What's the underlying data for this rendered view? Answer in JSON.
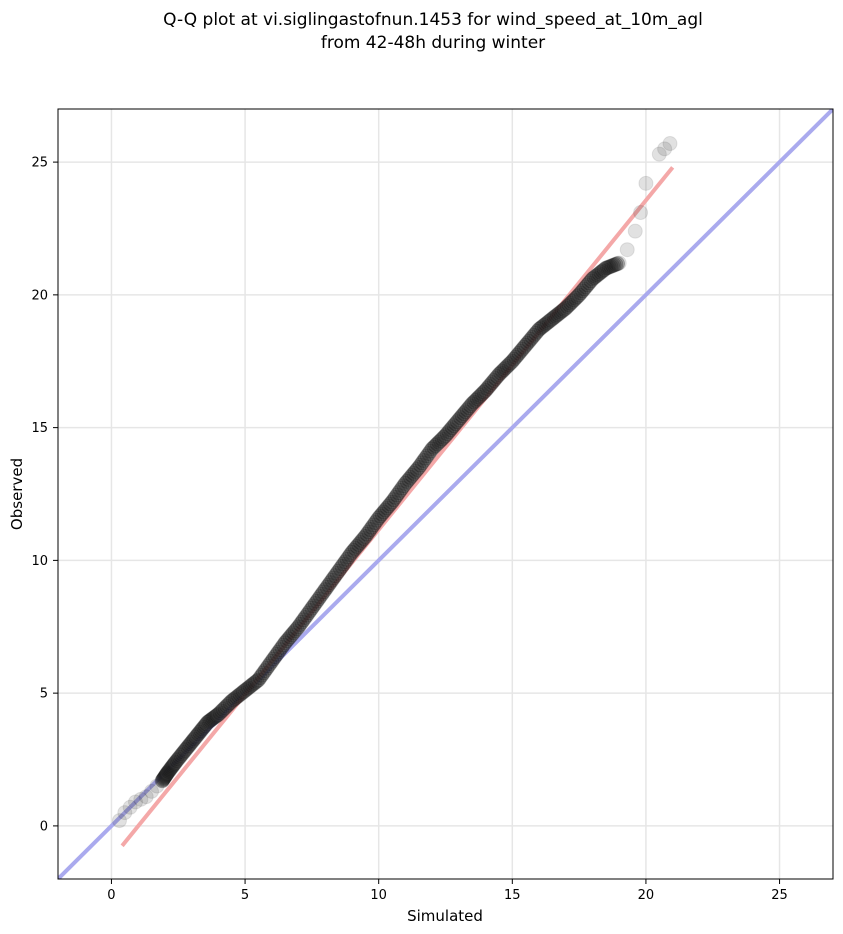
{
  "chart_data": {
    "type": "scatter",
    "title_lines": [
      "Q-Q plot at vi.siglingastofnun.1453 for wind_speed_at_10m_agl",
      "from 42-48h during winter"
    ],
    "xlabel": "Simulated",
    "ylabel": "Observed",
    "xlim": [
      -2,
      27
    ],
    "ylim": [
      -2,
      27
    ],
    "xticks": [
      0,
      5,
      10,
      15,
      20,
      25
    ],
    "yticks": [
      0,
      5,
      10,
      15,
      20,
      25
    ],
    "xtick_labels": [
      "0",
      "5",
      "10",
      "15",
      "20",
      "25"
    ],
    "ytick_labels": [
      "0",
      "5",
      "10",
      "15",
      "20",
      "25"
    ],
    "grid": true,
    "reference_line": {
      "x": [
        -2,
        27
      ],
      "y": [
        -2,
        27
      ],
      "color": "#aaaaee"
    },
    "fit_line": {
      "x": [
        0.4,
        21.0
      ],
      "y": [
        -0.75,
        24.8
      ],
      "color": "#f4a8a8"
    },
    "quantile_points": {
      "x": [
        0.3,
        0.5,
        0.7,
        0.9,
        1.1,
        1.3,
        1.5,
        1.7,
        1.9,
        2.1,
        2.4,
        2.8,
        3.2,
        3.6,
        4.0,
        4.5,
        5.0,
        5.5,
        6.0,
        6.5,
        7.0,
        7.5,
        8.0,
        8.5,
        9.0,
        9.5,
        10.0,
        10.5,
        11.0,
        11.5,
        12.0,
        12.5,
        13.0,
        13.5,
        14.0,
        14.5,
        15.0,
        15.5,
        16.0,
        16.5,
        17.0,
        17.5,
        18.0,
        18.5,
        19.0,
        19.3,
        19.6,
        19.8,
        20.0,
        20.5,
        20.7,
        20.9
      ],
      "y": [
        0.2,
        0.5,
        0.7,
        0.9,
        1.0,
        1.1,
        1.3,
        1.5,
        1.7,
        2.0,
        2.4,
        2.9,
        3.4,
        3.9,
        4.2,
        4.7,
        5.1,
        5.5,
        6.2,
        6.9,
        7.5,
        8.2,
        8.9,
        9.6,
        10.3,
        10.9,
        11.6,
        12.2,
        12.9,
        13.5,
        14.2,
        14.7,
        15.3,
        15.9,
        16.4,
        17.0,
        17.5,
        18.1,
        18.7,
        19.1,
        19.5,
        20.0,
        20.6,
        21.0,
        21.2,
        21.7,
        22.4,
        23.1,
        24.2,
        25.3,
        25.5,
        25.7
      ]
    }
  }
}
